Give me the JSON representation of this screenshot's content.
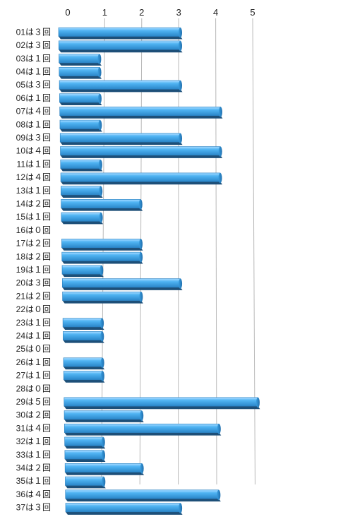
{
  "chart_data": {
    "type": "bar",
    "orientation": "horizontal",
    "categories": [
      "01は３回",
      "02は３回",
      "03は１回",
      "04は１回",
      "05は３回",
      "06は１回",
      "07は４回",
      "08は１回",
      "09は３回",
      "10は４回",
      "11は１回",
      "12は４回",
      "13は１回",
      "14は２回",
      "15は１回",
      "16は０回",
      "17は２回",
      "18は２回",
      "19は１回",
      "20は３回",
      "21は２回",
      "22は０回",
      "23は１回",
      "24は１回",
      "25は０回",
      "26は１回",
      "27は１回",
      "28は０回",
      "29は５回",
      "30は２回",
      "31は４回",
      "32は１回",
      "33は１回",
      "34は２回",
      "35は１回",
      "36は４回",
      "37は３回"
    ],
    "values": [
      3,
      3,
      1,
      1,
      3,
      1,
      4,
      1,
      3,
      4,
      1,
      4,
      1,
      2,
      1,
      0,
      2,
      2,
      1,
      3,
      2,
      0,
      1,
      1,
      0,
      1,
      1,
      0,
      5,
      2,
      4,
      1,
      1,
      2,
      1,
      4,
      3
    ],
    "x_ticks": [
      "0",
      "1",
      "2",
      "3",
      "4",
      "5"
    ],
    "xlim": [
      0,
      5
    ],
    "title": "",
    "xlabel": "",
    "ylabel": "",
    "grid": true,
    "legend": "none",
    "bar_color": "#3a9ee0",
    "bar_color_light": "#8fd0ff",
    "bar_side_color": "#1d4f78",
    "grid_color": "#b8b8b8"
  }
}
